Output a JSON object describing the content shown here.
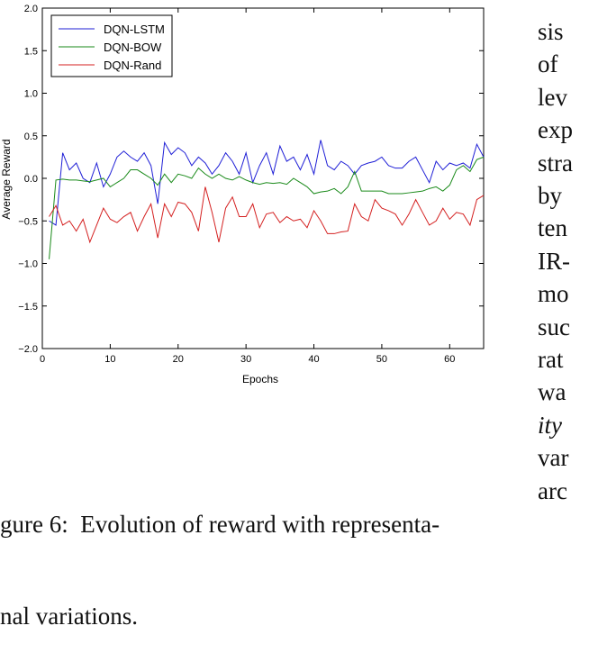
{
  "chart_data": {
    "type": "line",
    "title": "",
    "xlabel": "Epochs",
    "ylabel": "Average Reward",
    "xlim": [
      0,
      65
    ],
    "ylim": [
      -2.0,
      2.0
    ],
    "xticks": [
      "0",
      "10",
      "20",
      "30",
      "40",
      "50",
      "60"
    ],
    "yticks": [
      "2.0",
      "1.5",
      "1.0",
      "0.5",
      "0.0",
      "−0.5",
      "−1.0",
      "−1.5",
      "−2.0"
    ],
    "xtick_values": [
      0,
      10,
      20,
      30,
      40,
      50,
      60
    ],
    "ytick_values": [
      2.0,
      1.5,
      1.0,
      0.5,
      0.0,
      -0.5,
      -1.0,
      -1.5,
      -2.0
    ],
    "grid": false,
    "legend_position": "top-left",
    "x": [
      1,
      2,
      3,
      4,
      5,
      6,
      7,
      8,
      9,
      10,
      11,
      12,
      13,
      14,
      15,
      16,
      17,
      18,
      19,
      20,
      21,
      22,
      23,
      24,
      25,
      26,
      27,
      28,
      29,
      30,
      31,
      32,
      33,
      34,
      35,
      36,
      37,
      38,
      39,
      40,
      41,
      42,
      43,
      44,
      45,
      46,
      47,
      48,
      49,
      50,
      51,
      52,
      53,
      54,
      55,
      56,
      57,
      58,
      59,
      60,
      61,
      62,
      63,
      64,
      65
    ],
    "series": [
      {
        "name": "DQN-LSTM",
        "color": "#1f1fd6",
        "values": [
          -0.5,
          -0.55,
          0.3,
          0.1,
          0.18,
          0.0,
          -0.05,
          0.18,
          -0.1,
          0.05,
          0.25,
          0.32,
          0.25,
          0.2,
          0.3,
          0.15,
          -0.3,
          0.42,
          0.28,
          0.36,
          0.3,
          0.15,
          0.25,
          0.18,
          0.05,
          0.15,
          0.3,
          0.2,
          0.05,
          0.3,
          -0.05,
          0.15,
          0.3,
          0.05,
          0.38,
          0.2,
          0.25,
          0.1,
          0.28,
          0.05,
          0.45,
          0.15,
          0.1,
          0.2,
          0.15,
          0.05,
          0.15,
          0.18,
          0.2,
          0.25,
          0.15,
          0.12,
          0.12,
          0.2,
          0.25,
          0.1,
          -0.05,
          0.2,
          0.1,
          0.18,
          0.15,
          0.18,
          0.12,
          0.4,
          0.25
        ]
      },
      {
        "name": "DQN-BOW",
        "color": "#1a8a1a",
        "values": [
          -0.95,
          -0.02,
          -0.01,
          -0.02,
          -0.02,
          -0.03,
          -0.04,
          -0.02,
          0.0,
          -0.1,
          -0.05,
          0.0,
          0.1,
          0.1,
          0.05,
          0.0,
          -0.08,
          0.05,
          -0.05,
          0.05,
          0.03,
          0.0,
          0.12,
          0.05,
          0.0,
          0.05,
          0.0,
          -0.02,
          0.02,
          -0.02,
          -0.05,
          -0.07,
          -0.05,
          -0.06,
          -0.05,
          -0.07,
          0.0,
          -0.05,
          -0.1,
          -0.18,
          -0.16,
          -0.15,
          -0.12,
          -0.18,
          -0.1,
          0.08,
          -0.15,
          -0.15,
          -0.15,
          -0.15,
          -0.18,
          -0.18,
          -0.18,
          -0.17,
          -0.16,
          -0.15,
          -0.12,
          -0.1,
          -0.15,
          -0.08,
          0.1,
          0.15,
          0.08,
          0.22,
          0.25
        ]
      },
      {
        "name": "DQN-Rand",
        "color": "#d42020",
        "values": [
          -0.45,
          -0.32,
          -0.55,
          -0.5,
          -0.62,
          -0.48,
          -0.75,
          -0.55,
          -0.35,
          -0.48,
          -0.52,
          -0.45,
          -0.4,
          -0.62,
          -0.45,
          -0.3,
          -0.7,
          -0.3,
          -0.45,
          -0.28,
          -0.3,
          -0.4,
          -0.62,
          -0.1,
          -0.4,
          -0.75,
          -0.35,
          -0.22,
          -0.45,
          -0.45,
          -0.3,
          -0.58,
          -0.42,
          -0.4,
          -0.52,
          -0.45,
          -0.5,
          -0.48,
          -0.58,
          -0.38,
          -0.5,
          -0.65,
          -0.65,
          -0.63,
          -0.62,
          -0.3,
          -0.45,
          -0.5,
          -0.25,
          -0.35,
          -0.38,
          -0.42,
          -0.55,
          -0.42,
          -0.25,
          -0.4,
          -0.55,
          -0.5,
          -0.35,
          -0.48,
          -0.4,
          -0.42,
          -0.55,
          -0.25,
          -0.2
        ]
      }
    ]
  },
  "caption": {
    "line1": "gure 6:  Evolution of reward with representa-",
    "line2": "nal variations."
  },
  "right_column": {
    "words": [
      "sis",
      "of",
      "lev",
      "exp",
      "stra",
      "by",
      "ten",
      "IR-",
      "mo",
      "suc",
      "rat",
      "wa",
      "ity",
      "var",
      "arc"
    ]
  }
}
